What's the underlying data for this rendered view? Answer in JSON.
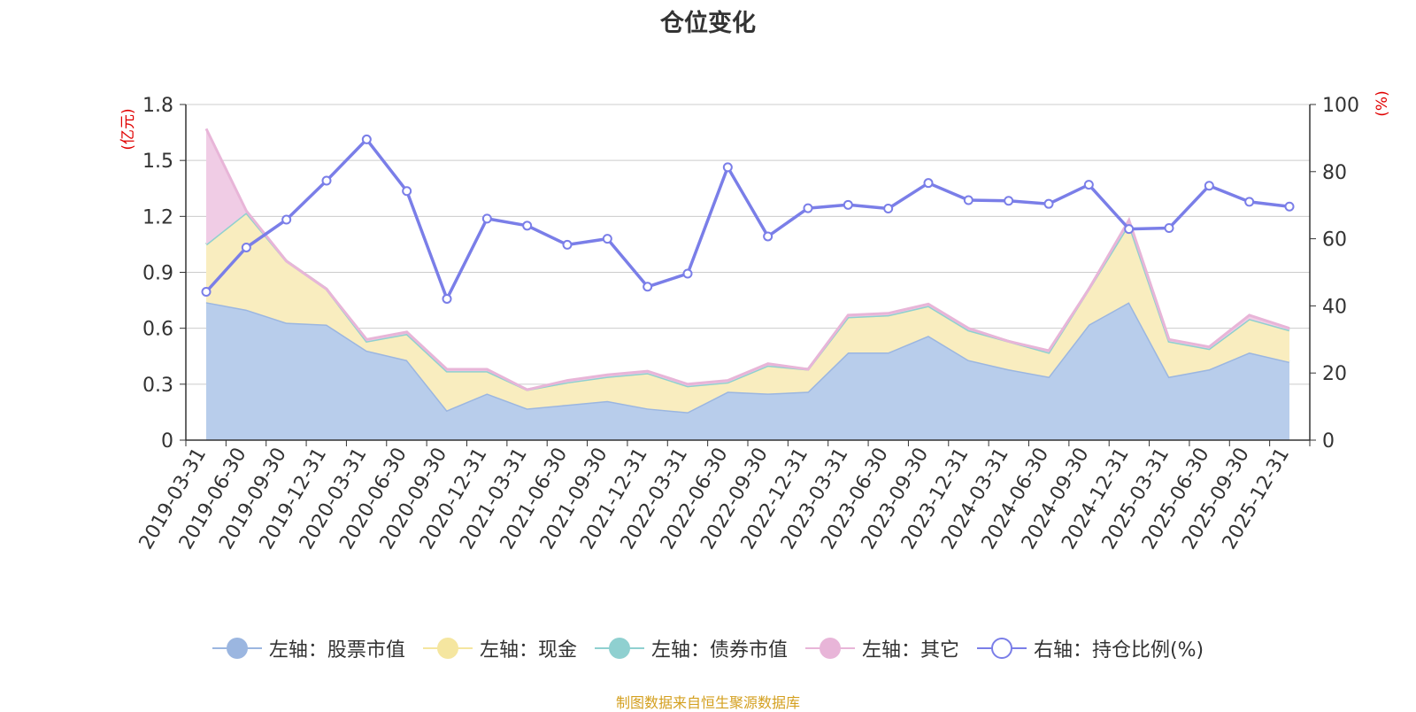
{
  "title": "仓位变化",
  "source": "制图数据来自恒生聚源数据库",
  "chart_data": {
    "type": "area",
    "title": "仓位变化",
    "categories": [
      "2019-03-31",
      "2019-06-30",
      "2019-09-30",
      "2019-12-31",
      "2020-03-31",
      "2020-06-30",
      "2020-09-30",
      "2020-12-31",
      "2021-03-31",
      "2021-06-30",
      "2021-09-30",
      "2021-12-31",
      "2022-03-31",
      "2022-06-30",
      "2022-09-30",
      "2022-12-31",
      "2023-03-31",
      "2023-06-30",
      "2023-09-30",
      "2023-12-31",
      "2024-03-31",
      "2024-06-30",
      "2024-09-30",
      "2024-12-31",
      "2025-03-31",
      "2025-06-30",
      "2025-09-30",
      "2025-12-31"
    ],
    "y_left": {
      "label": "(亿元)",
      "range": [
        0,
        1.8
      ],
      "ticks": [
        "0",
        "0.3",
        "0.6",
        "0.9",
        "1.2",
        "1.5",
        "1.8"
      ]
    },
    "y_right": {
      "label": "(%)",
      "range": [
        0,
        100
      ],
      "ticks": [
        "0",
        "20",
        "40",
        "60",
        "80",
        "100"
      ]
    },
    "grid": true,
    "legend_position": "bottom",
    "series": [
      {
        "name": "左轴：股票市值",
        "axis": "left",
        "kind": "stacked-area",
        "color": "#9bb6e0",
        "fill": "#b8cdeb",
        "values": [
          0.74,
          0.7,
          0.63,
          0.62,
          0.48,
          0.43,
          0.16,
          0.25,
          0.17,
          0.19,
          0.21,
          0.17,
          0.15,
          0.26,
          0.25,
          0.26,
          0.47,
          0.47,
          0.56,
          0.43,
          0.38,
          0.34,
          0.62,
          0.74,
          0.34,
          0.38,
          0.47,
          0.42
        ]
      },
      {
        "name": "左轴：现金",
        "axis": "left",
        "kind": "stacked-area",
        "color": "#f5e6a0",
        "fill": "#f9edbf",
        "values": [
          0.31,
          0.52,
          0.33,
          0.19,
          0.05,
          0.14,
          0.21,
          0.12,
          0.1,
          0.12,
          0.13,
          0.19,
          0.14,
          0.05,
          0.15,
          0.12,
          0.19,
          0.2,
          0.16,
          0.16,
          0.15,
          0.13,
          0.19,
          0.42,
          0.19,
          0.11,
          0.18,
          0.17
        ]
      },
      {
        "name": "左轴：债券市值",
        "axis": "left",
        "kind": "stacked-area",
        "color": "#8fd0d0",
        "fill": "#b5e2e2",
        "values": [
          0,
          0,
          0,
          0,
          0,
          0,
          0,
          0,
          0,
          0,
          0,
          0,
          0,
          0,
          0,
          0,
          0,
          0,
          0,
          0,
          0,
          0,
          0,
          0,
          0,
          0,
          0,
          0
        ]
      },
      {
        "name": "左轴：其它",
        "axis": "left",
        "kind": "stacked-area",
        "color": "#e8b5d8",
        "fill": "#f0cce5",
        "values": [
          0.62,
          0.01,
          0.0,
          0.0,
          0.01,
          0.01,
          0.01,
          0.01,
          0.0,
          0.01,
          0.01,
          0.01,
          0.01,
          0.01,
          0.01,
          0.0,
          0.01,
          0.01,
          0.01,
          0.01,
          0.0,
          0.01,
          0.0,
          0.02,
          0.01,
          0.01,
          0.02,
          0.01
        ]
      },
      {
        "name": "右轴：持仓比例(%)",
        "axis": "right",
        "kind": "line",
        "color": "#7a7ee8",
        "values": [
          44.2,
          57.4,
          65.7,
          77.3,
          89.6,
          74.2,
          42.1,
          66.0,
          63.9,
          58.2,
          60.0,
          45.7,
          49.6,
          81.3,
          60.7,
          69.1,
          70.1,
          69.0,
          76.6,
          71.5,
          71.3,
          70.4,
          76.1,
          62.9,
          63.2,
          75.8,
          71.0,
          69.6
        ]
      }
    ]
  }
}
